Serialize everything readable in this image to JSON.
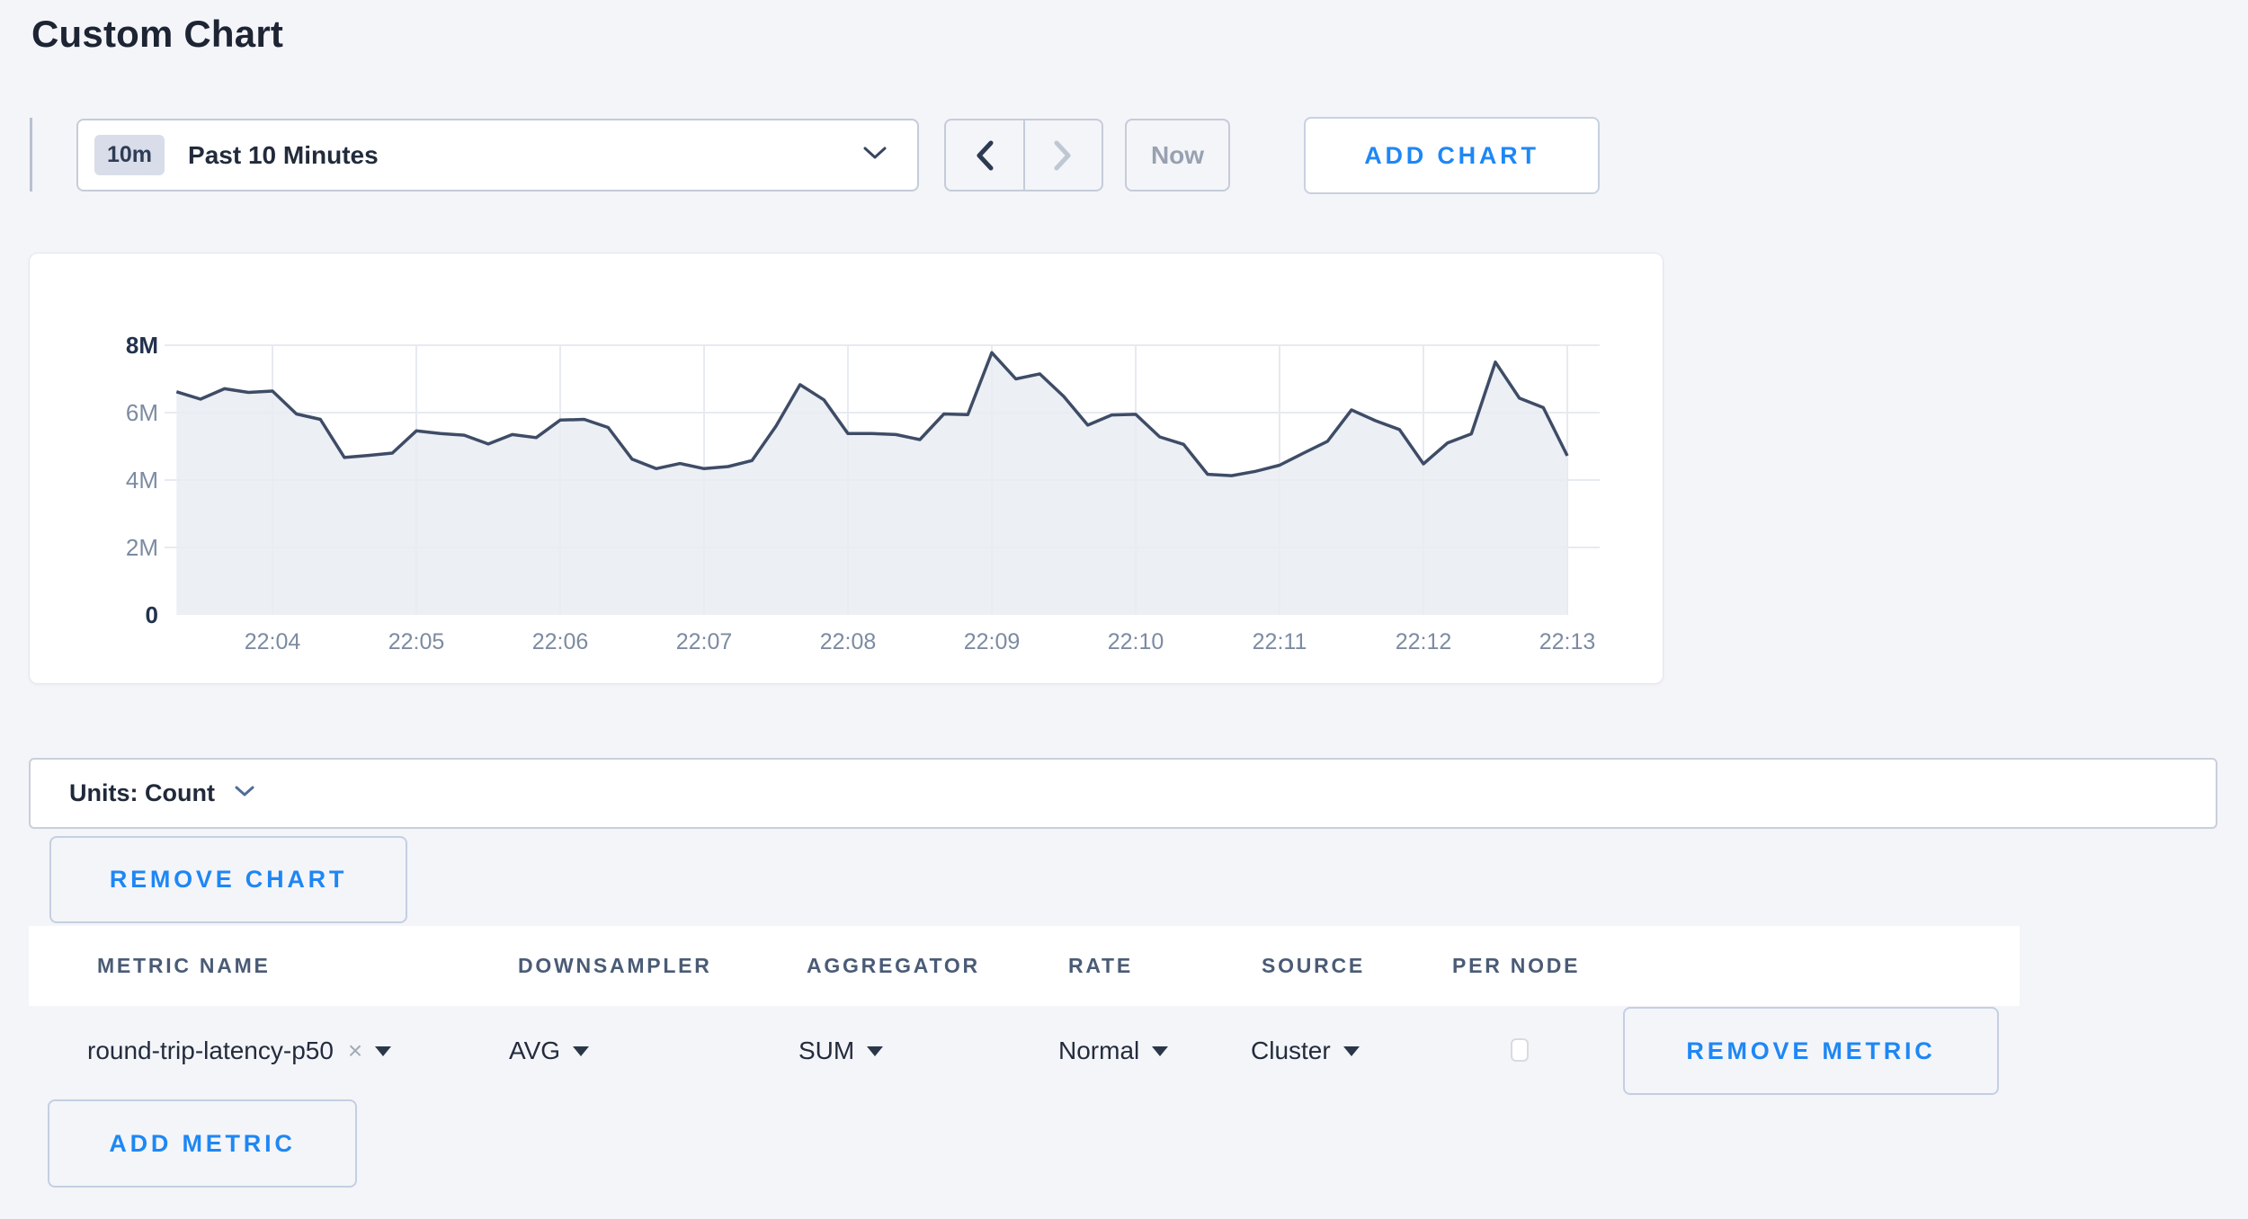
{
  "page": {
    "title": "Custom Chart"
  },
  "toolbar": {
    "time_scale_badge": "10m",
    "time_scale_label": "Past 10 Minutes",
    "now_label": "Now",
    "add_chart_label": "ADD CHART"
  },
  "units_bar": {
    "label": "Units: Count"
  },
  "chart_controls": {
    "remove_chart_label": "REMOVE CHART"
  },
  "chart_data": {
    "type": "area",
    "title": "",
    "xlabel": "",
    "ylabel": "count",
    "ylim_millions": [
      0,
      8
    ],
    "grid": true,
    "legend": "none",
    "y_ticks": [
      {
        "label": "0",
        "value": 0,
        "emphasis": true
      },
      {
        "label": "2M",
        "value": 2,
        "emphasis": false
      },
      {
        "label": "4M",
        "value": 4,
        "emphasis": false
      },
      {
        "label": "6M",
        "value": 6,
        "emphasis": false
      },
      {
        "label": "8M",
        "value": 8,
        "emphasis": true
      }
    ],
    "x_tick_labels": [
      "22:04",
      "22:05",
      "22:06",
      "22:07",
      "22:08",
      "22:09",
      "22:10",
      "22:11",
      "22:12",
      "22:13"
    ],
    "series": [
      {
        "name": "round-trip-latency-p50",
        "start_time": "22:03:20",
        "interval_seconds": 10,
        "values_millions": [
          6.62,
          6.4,
          6.71,
          6.6,
          6.64,
          5.96,
          5.8,
          4.67,
          4.73,
          4.8,
          5.46,
          5.38,
          5.33,
          5.07,
          5.35,
          5.26,
          5.78,
          5.8,
          5.56,
          4.62,
          4.34,
          4.49,
          4.34,
          4.4,
          4.58,
          5.6,
          6.83,
          6.38,
          5.38,
          5.38,
          5.35,
          5.2,
          5.96,
          5.94,
          7.78,
          7.0,
          7.15,
          6.48,
          5.63,
          5.93,
          5.95,
          5.28,
          5.06,
          4.17,
          4.13,
          4.26,
          4.44,
          4.8,
          5.15,
          6.08,
          5.76,
          5.5,
          4.48,
          5.1,
          5.37,
          7.5,
          6.43,
          6.15,
          4.72
        ]
      }
    ]
  },
  "metrics_table": {
    "columns": [
      "METRIC NAME",
      "DOWNSAMPLER",
      "AGGREGATOR",
      "RATE",
      "SOURCE",
      "PER NODE"
    ],
    "rows": [
      {
        "metric_name": "round-trip-latency-p50",
        "remove_token": "×",
        "downsampler": "AVG",
        "aggregator": "SUM",
        "rate": "Normal",
        "source": "Cluster",
        "per_node_checked": false,
        "remove_metric_label": "REMOVE METRIC"
      }
    ],
    "add_metric_label": "ADD METRIC"
  },
  "colors": {
    "accent_blue": "#1e87f5",
    "line": "#3e4c66",
    "area_fill": "#e9ecf2",
    "grid": "#e7eaf1",
    "axis_label": "#7c8ba2",
    "axis_label_emphasis": "#22324e",
    "page_background": "#f4f5f9"
  }
}
